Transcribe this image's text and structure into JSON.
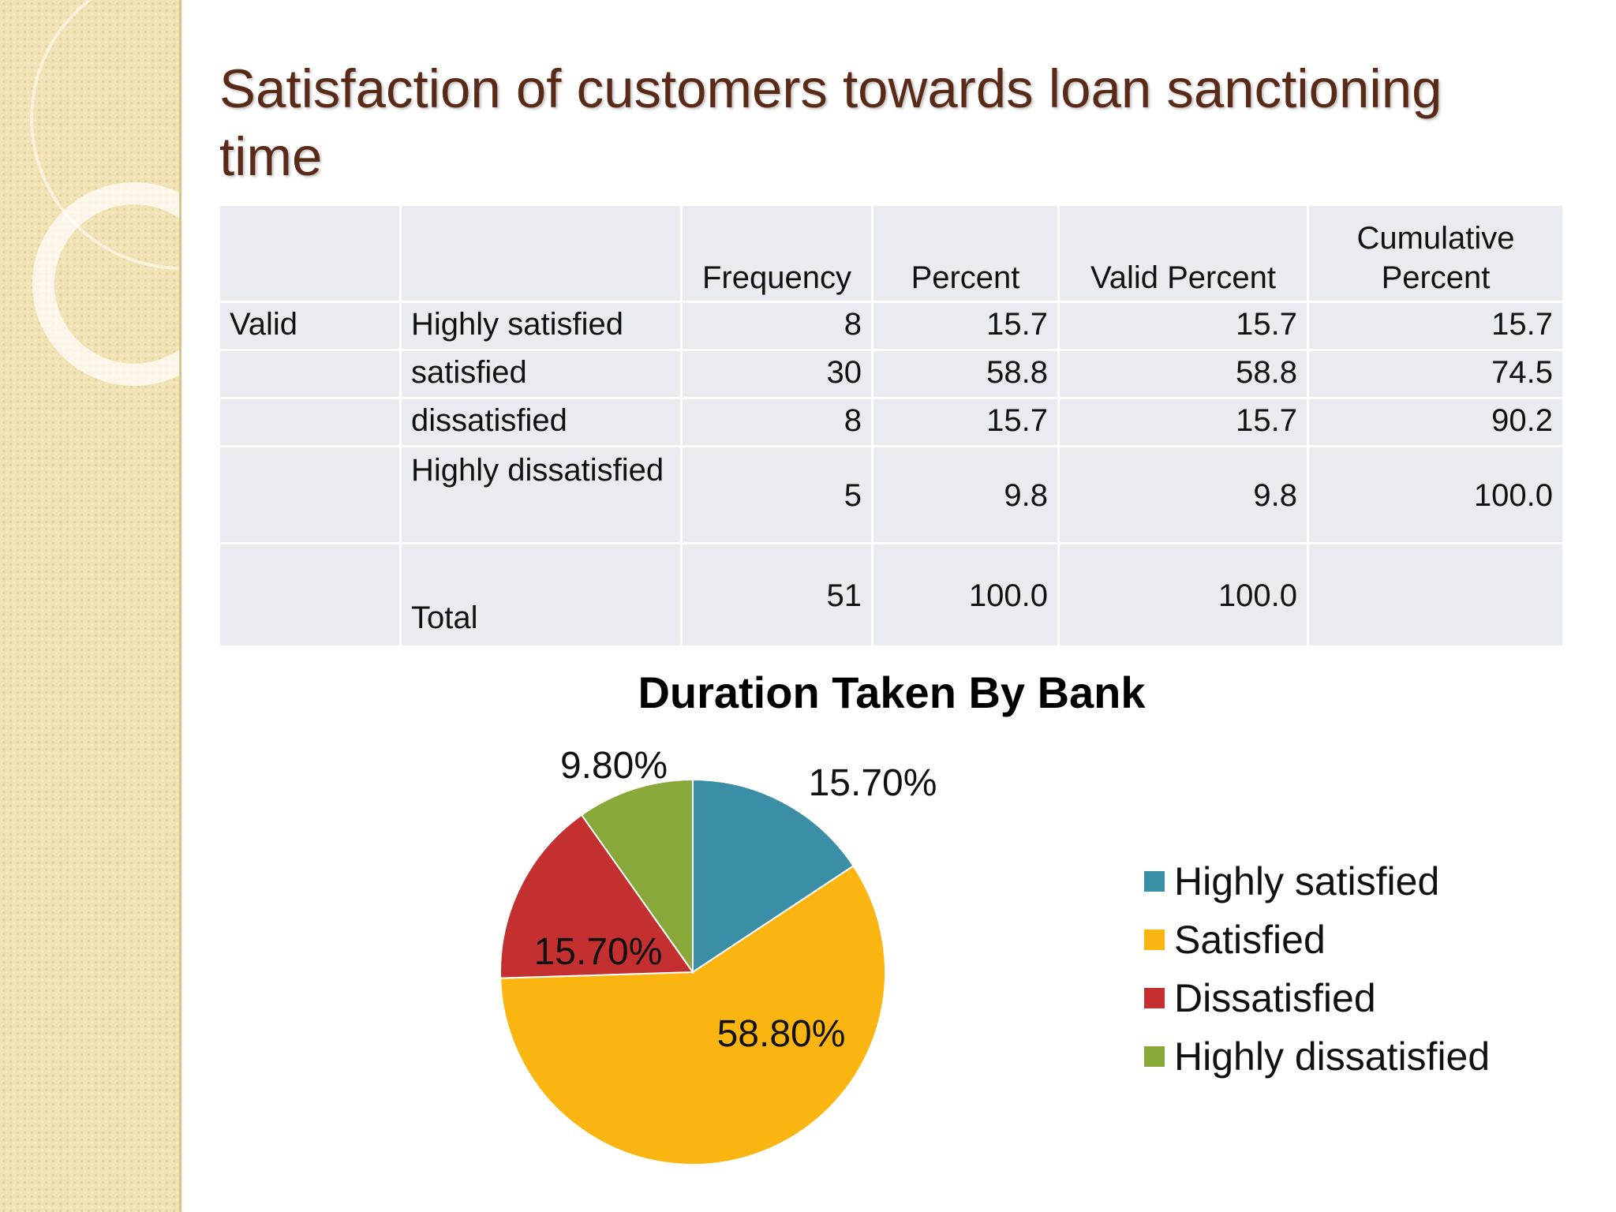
{
  "slide": {
    "title": "Satisfaction of customers towards loan sanctioning time"
  },
  "table": {
    "headers": [
      "",
      "",
      "Frequency",
      "Percent",
      "Valid Percent",
      "Cumulative Percent"
    ],
    "rows": [
      {
        "group": "Valid",
        "label": "Highly satisfied",
        "frequency": "8",
        "percent": "15.7",
        "valid_percent": "15.7",
        "cumulative_percent": "15.7"
      },
      {
        "group": "",
        "label": "satisfied",
        "frequency": "30",
        "percent": "58.8",
        "valid_percent": "58.8",
        "cumulative_percent": "74.5"
      },
      {
        "group": "",
        "label": "dissatisfied",
        "frequency": "8",
        "percent": "15.7",
        "valid_percent": "15.7",
        "cumulative_percent": "90.2"
      },
      {
        "group": "",
        "label": "Highly dissatisfied",
        "frequency": "5",
        "percent": "9.8",
        "valid_percent": "9.8",
        "cumulative_percent": "100.0"
      },
      {
        "group": "",
        "label": "Total",
        "frequency": "51",
        "percent": "100.0",
        "valid_percent": "100.0",
        "cumulative_percent": ""
      }
    ]
  },
  "chart_data": {
    "type": "pie",
    "title": "Duration Taken By Bank",
    "categories": [
      "Highly satisfied",
      "Satisfied",
      "Dissatisfied",
      "Highly dissatisfied"
    ],
    "values": [
      15.7,
      58.8,
      15.7,
      9.8
    ],
    "data_labels": [
      "15.70%",
      "58.80%",
      "15.70%",
      "9.80%"
    ],
    "colors": [
      "#3a8fa6",
      "#fbb511",
      "#c4302f",
      "#88a83a"
    ],
    "legend_position": "right"
  }
}
